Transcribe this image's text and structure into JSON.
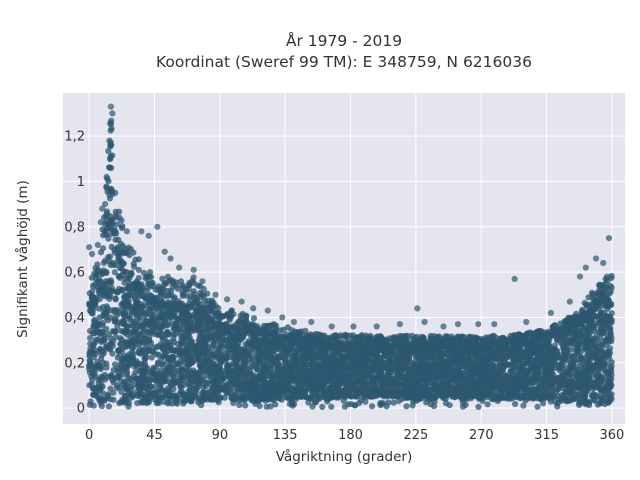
{
  "chart_data": {
    "type": "scatter",
    "title_line1": "År 1979 - 2019",
    "title_line2": "Koordinat (Sweref 99 TM): E 348759, N 6216036",
    "xlabel": "Vågriktning (grader)",
    "ylabel": "Signifikant våghöjd (m)",
    "xlim": [
      -18,
      369
    ],
    "ylim": [
      -0.07,
      1.39
    ],
    "xticks": [
      0,
      45,
      90,
      135,
      180,
      225,
      270,
      315,
      360
    ],
    "xtick_labels": [
      "0",
      "45",
      "90",
      "135",
      "180",
      "225",
      "270",
      "315",
      "360"
    ],
    "yticks": [
      0,
      0.2,
      0.4,
      0.6,
      0.8,
      1.0,
      1.2
    ],
    "ytick_labels": [
      "0",
      "0,2",
      "0,4",
      "0,6",
      "0,8",
      "1",
      "1,2"
    ],
    "grid": true,
    "legend": "none",
    "colors": {
      "marker": "#2e5770",
      "plot_bg": "#e5e5ef",
      "grid": "#ffffff"
    },
    "series": [
      {
        "envelope": {
          "x": [
            0,
            5,
            10,
            13,
            15,
            17,
            20,
            25,
            30,
            40,
            45,
            55,
            65,
            70,
            80,
            90,
            100,
            110,
            120,
            135,
            150,
            165,
            180,
            195,
            210,
            225,
            240,
            255,
            270,
            285,
            300,
            315,
            325,
            335,
            340,
            345,
            350,
            355,
            360
          ],
          "y_max": [
            0.58,
            0.65,
            0.82,
            1.12,
            1.33,
            1.05,
            0.88,
            0.78,
            0.7,
            0.62,
            0.6,
            0.58,
            0.57,
            0.6,
            0.52,
            0.44,
            0.43,
            0.41,
            0.38,
            0.36,
            0.34,
            0.32,
            0.33,
            0.32,
            0.32,
            0.32,
            0.32,
            0.32,
            0.32,
            0.32,
            0.33,
            0.35,
            0.38,
            0.42,
            0.46,
            0.5,
            0.54,
            0.6,
            0.62
          ],
          "y_min": [
            0.02,
            0.02,
            0.02,
            0.02,
            0.02,
            0.02,
            0.02,
            0.02,
            0.02,
            0.02,
            0.02,
            0.02,
            0.02,
            0.03,
            0.03,
            0.03,
            0.03,
            0.03,
            0.03,
            0.04,
            0.04,
            0.04,
            0.05,
            0.05,
            0.05,
            0.04,
            0.04,
            0.04,
            0.04,
            0.04,
            0.04,
            0.04,
            0.03,
            0.03,
            0.02,
            0.02,
            0.02,
            0.02,
            0.02
          ],
          "core_top": [
            0.45,
            0.5,
            0.62,
            0.85,
            1.2,
            0.82,
            0.68,
            0.6,
            0.54,
            0.48,
            0.46,
            0.45,
            0.44,
            0.45,
            0.4,
            0.36,
            0.35,
            0.34,
            0.32,
            0.3,
            0.28,
            0.27,
            0.27,
            0.27,
            0.27,
            0.27,
            0.27,
            0.27,
            0.27,
            0.28,
            0.29,
            0.31,
            0.33,
            0.36,
            0.38,
            0.42,
            0.45,
            0.48,
            0.5
          ]
        },
        "outliers": [
          [
            0,
            0.71
          ],
          [
            2,
            0.68
          ],
          [
            6,
            0.72
          ],
          [
            8,
            0.82
          ],
          [
            9,
            0.88
          ],
          [
            11,
            0.9
          ],
          [
            12,
            1.02
          ],
          [
            14,
            1.18
          ],
          [
            15,
            1.33
          ],
          [
            16,
            1.3
          ],
          [
            18,
            0.95
          ],
          [
            21,
            0.84
          ],
          [
            26,
            0.78
          ],
          [
            36,
            0.78
          ],
          [
            41,
            0.76
          ],
          [
            47,
            0.8
          ],
          [
            52,
            0.69
          ],
          [
            56,
            0.66
          ],
          [
            62,
            0.62
          ],
          [
            72,
            0.61
          ],
          [
            78,
            0.56
          ],
          [
            87,
            0.5
          ],
          [
            95,
            0.48
          ],
          [
            105,
            0.47
          ],
          [
            113,
            0.44
          ],
          [
            123,
            0.43
          ],
          [
            133,
            0.4
          ],
          [
            141,
            0.38
          ],
          [
            153,
            0.38
          ],
          [
            167,
            0.36
          ],
          [
            182,
            0.36
          ],
          [
            198,
            0.36
          ],
          [
            214,
            0.37
          ],
          [
            226,
            0.44
          ],
          [
            231,
            0.38
          ],
          [
            244,
            0.36
          ],
          [
            254,
            0.37
          ],
          [
            268,
            0.37
          ],
          [
            279,
            0.37
          ],
          [
            293,
            0.57
          ],
          [
            301,
            0.38
          ],
          [
            318,
            0.42
          ],
          [
            331,
            0.47
          ],
          [
            338,
            0.58
          ],
          [
            342,
            0.62
          ],
          [
            349,
            0.66
          ],
          [
            354,
            0.64
          ],
          [
            358,
            0.75
          ]
        ]
      }
    ]
  }
}
